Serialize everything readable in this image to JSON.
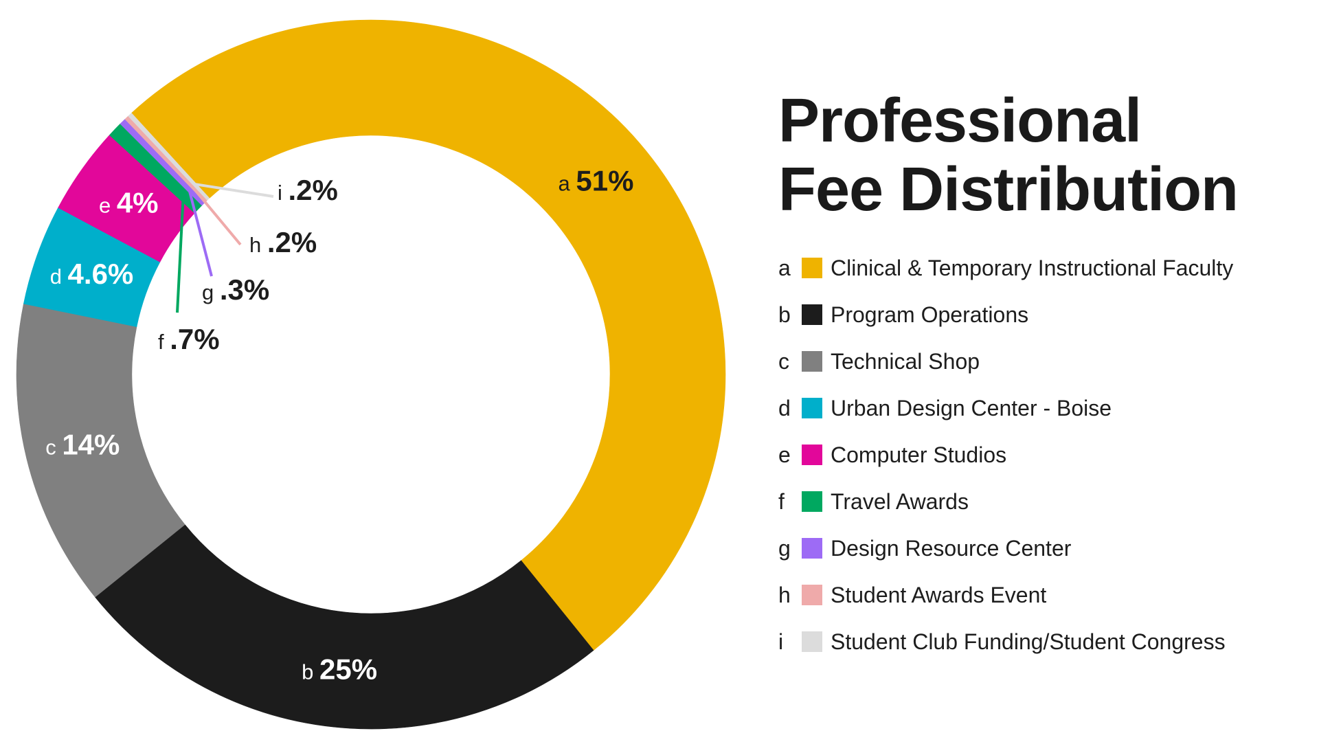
{
  "title_lines": [
    "Professional",
    "Fee Distribution"
  ],
  "chart_data": {
    "type": "pie",
    "variant": "donut",
    "title": "Professional Fee Distribution",
    "slices": [
      {
        "letter": "a",
        "label": "Clinical & Temporary Instructional Faculty",
        "value": 51,
        "display": "51%",
        "color": "#EFB300",
        "label_text_color": "#1d1d1d"
      },
      {
        "letter": "b",
        "label": "Program Operations",
        "value": 25,
        "display": "25%",
        "color": "#1C1C1C",
        "label_text_color": "#ffffff"
      },
      {
        "letter": "c",
        "label": "Technical Shop",
        "value": 14,
        "display": "14%",
        "color": "#808080",
        "label_text_color": "#ffffff"
      },
      {
        "letter": "d",
        "label": "Urban Design Center - Boise",
        "value": 4.6,
        "display": "4.6%",
        "color": "#00AFCB",
        "label_text_color": "#ffffff"
      },
      {
        "letter": "e",
        "label": "Computer Studios",
        "value": 4,
        "display": "4%",
        "color": "#E2079A",
        "label_text_color": "#ffffff"
      },
      {
        "letter": "f",
        "label": "Travel Awards",
        "value": 0.7,
        "display": ".7%",
        "color": "#00A860",
        "label_text_color": "#1d1d1d"
      },
      {
        "letter": "g",
        "label": "Design Resource Center",
        "value": 0.3,
        "display": ".3%",
        "color": "#9D6BF5",
        "label_text_color": "#1d1d1d"
      },
      {
        "letter": "h",
        "label": "Student Awards Event",
        "value": 0.2,
        "display": ".2%",
        "color": "#EFAAAA",
        "label_text_color": "#1d1d1d"
      },
      {
        "letter": "i",
        "label": "Student Club Funding/Student Congress",
        "value": 0.2,
        "display": ".2%",
        "color": "#DCDCDC",
        "label_text_color": "#1d1d1d"
      }
    ],
    "legend_position": "right"
  }
}
